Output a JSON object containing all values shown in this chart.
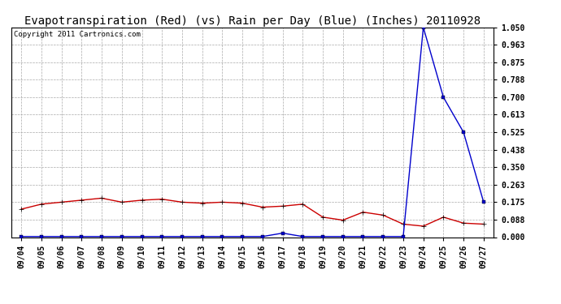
{
  "title": "Evapotranspiration (Red) (vs) Rain per Day (Blue) (Inches) 20110928",
  "copyright": "Copyright 2011 Cartronics.com",
  "dates": [
    "09/04",
    "09/05",
    "09/06",
    "09/07",
    "09/08",
    "09/09",
    "09/10",
    "09/11",
    "09/12",
    "09/13",
    "09/14",
    "09/15",
    "09/16",
    "09/17",
    "09/18",
    "09/19",
    "09/20",
    "09/21",
    "09/22",
    "09/23",
    "09/24",
    "09/25",
    "09/26",
    "09/27"
  ],
  "red_values": [
    0.14,
    0.165,
    0.175,
    0.185,
    0.195,
    0.175,
    0.185,
    0.19,
    0.175,
    0.17,
    0.175,
    0.17,
    0.15,
    0.155,
    0.165,
    0.1,
    0.085,
    0.125,
    0.11,
    0.065,
    0.055,
    0.1,
    0.07,
    0.065
  ],
  "blue_values": [
    0.003,
    0.003,
    0.003,
    0.003,
    0.003,
    0.003,
    0.003,
    0.003,
    0.003,
    0.003,
    0.003,
    0.003,
    0.003,
    0.02,
    0.003,
    0.003,
    0.003,
    0.003,
    0.003,
    0.003,
    1.05,
    0.7,
    0.525,
    0.175
  ],
  "red_color": "#cc0000",
  "blue_color": "#0000cc",
  "ylim_min": 0.0,
  "ylim_max": 1.05,
  "yticks": [
    0.0,
    0.088,
    0.175,
    0.263,
    0.35,
    0.438,
    0.525,
    0.613,
    0.7,
    0.788,
    0.875,
    0.963,
    1.05
  ],
  "ytick_labels": [
    "0.000",
    "0.088",
    "0.175",
    "0.263",
    "0.350",
    "0.438",
    "0.525",
    "0.613",
    "0.700",
    "0.788",
    "0.875",
    "0.963",
    "1.050"
  ],
  "bg_color": "#ffffff",
  "grid_color": "#aaaaaa",
  "title_fontsize": 10,
  "tick_fontsize": 7,
  "copyright_fontsize": 6.5,
  "marker_size": 3,
  "linewidth": 1.0
}
